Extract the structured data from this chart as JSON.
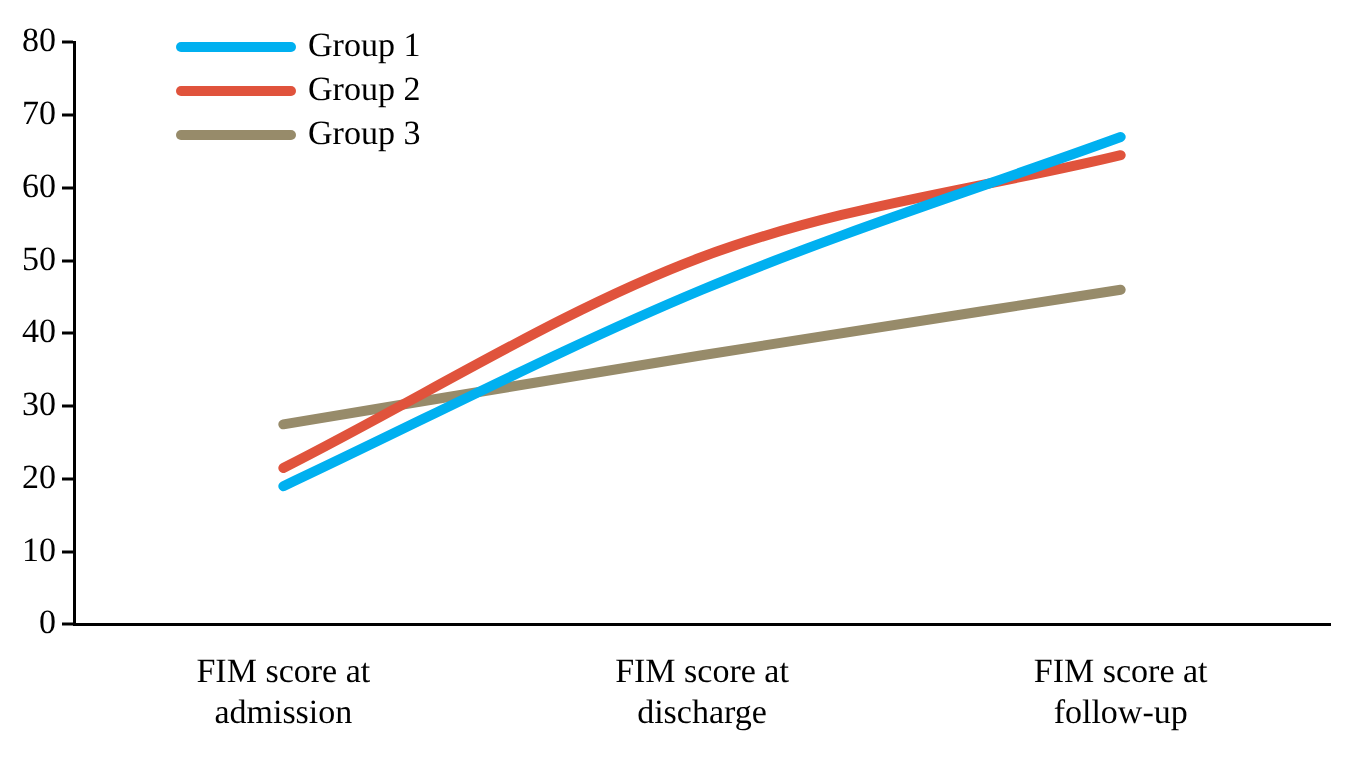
{
  "chart_data": {
    "type": "line",
    "categories": [
      "FIM score at admission",
      "FIM score at discharge",
      "FIM score at follow-up"
    ],
    "series": [
      {
        "name": "Group 1",
        "color": "#00b0f0",
        "values": [
          19,
          46,
          67
        ]
      },
      {
        "name": "Group 2",
        "color": "#e0533c",
        "values": [
          21.5,
          50.5,
          64.5
        ]
      },
      {
        "name": "Group 3",
        "color": "#978b6a",
        "values": [
          27.5,
          37,
          46
        ]
      }
    ],
    "ylim": [
      0,
      80
    ],
    "yticks": [
      0,
      10,
      20,
      30,
      40,
      50,
      60,
      70,
      80
    ],
    "grid": false,
    "legend": "top left",
    "marker": "none",
    "line_style": "solid"
  }
}
